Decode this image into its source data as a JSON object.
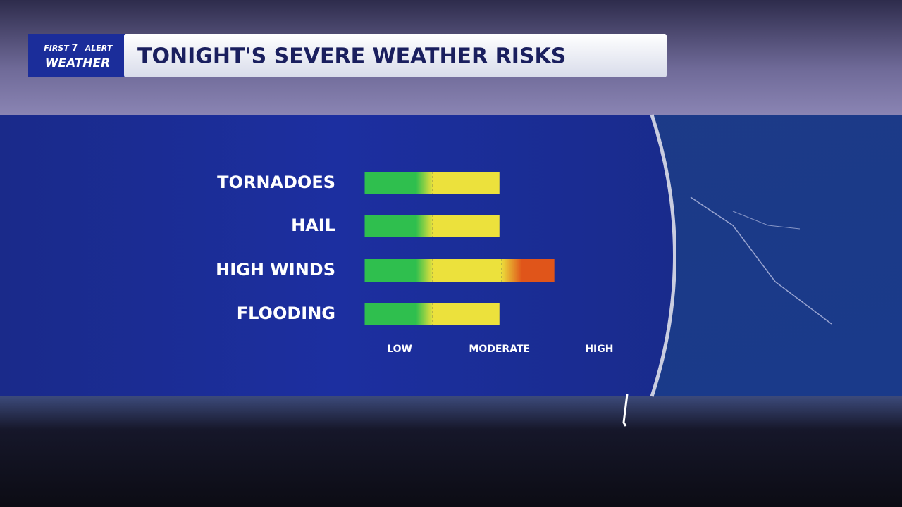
{
  "logo": {
    "top_left": "FIRST",
    "badge": "7",
    "top_right": "ALERT",
    "bottom": "WEATHER"
  },
  "chart_data": {
    "type": "bar",
    "orientation": "horizontal",
    "title": "TONIGHT'S SEVERE WEATHER RISKS",
    "categories": [
      "TORNADOES",
      "HAIL",
      "HIGH WINDS",
      "FLOODING"
    ],
    "values": [
      2,
      2,
      2.55,
      2
    ],
    "colors": [
      "#2fbf4e",
      "#ece13c",
      "#e0551a"
    ],
    "xlim": [
      0.65,
      3.35
    ],
    "xticks": [
      {
        "value": 1,
        "label": "LOW"
      },
      {
        "value": 2,
        "label": "MODERATE"
      },
      {
        "value": 3,
        "label": "HIGH"
      }
    ],
    "grid": false
  }
}
